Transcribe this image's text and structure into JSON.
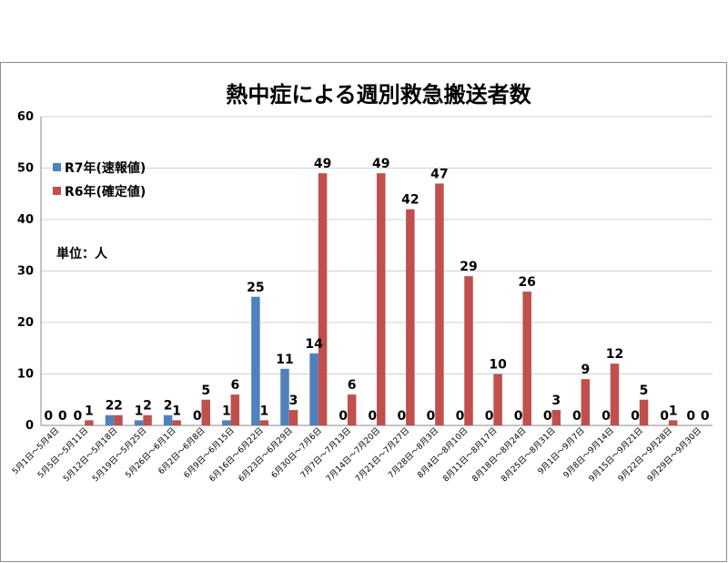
{
  "chart_data": {
    "type": "bar",
    "title": "熱中症による週別救急搬送者数",
    "unit_label": "単位：人",
    "ylim": [
      0,
      60
    ],
    "yticks": [
      "0",
      "10",
      "20",
      "30",
      "40",
      "50",
      "60"
    ],
    "categories": [
      "5月1日～5月4日",
      "5月5日～5月11日",
      "5月12日～5月18日",
      "5月19日～5月25日",
      "5月26日～6月1日",
      "6月2日～6月8日",
      "6月9日～6月15日",
      "6月16日～6月22日",
      "6月23日～6月29日",
      "6月30日～7月6日",
      "7月7日～7月13日",
      "7月14日～7月20日",
      "7月21日～7月27日",
      "7月28日～8月3日",
      "8月4日～8月10日",
      "8月11日～8月17日",
      "8月18日～8月24日",
      "8月25日～8月31日",
      "9月1日～9月7日",
      "9月8日～9月14日",
      "9月15日～9月21日",
      "9月22日～9月28日",
      "9月29日～9月30日"
    ],
    "series": [
      {
        "name": "R7年(速報値)",
        "color": "#4f81bd",
        "values": [
          0,
          0,
          2,
          1,
          2,
          0,
          1,
          25,
          11,
          14,
          0,
          0,
          0,
          0,
          0,
          0,
          0,
          0,
          0,
          0,
          0,
          0,
          0
        ]
      },
      {
        "name": "R6年(確定値)",
        "color": "#c0504d",
        "values": [
          0,
          1,
          2,
          2,
          1,
          5,
          6,
          1,
          3,
          49,
          6,
          49,
          42,
          47,
          29,
          10,
          26,
          3,
          9,
          12,
          5,
          1,
          0
        ]
      }
    ],
    "legend_position": "top-left"
  }
}
